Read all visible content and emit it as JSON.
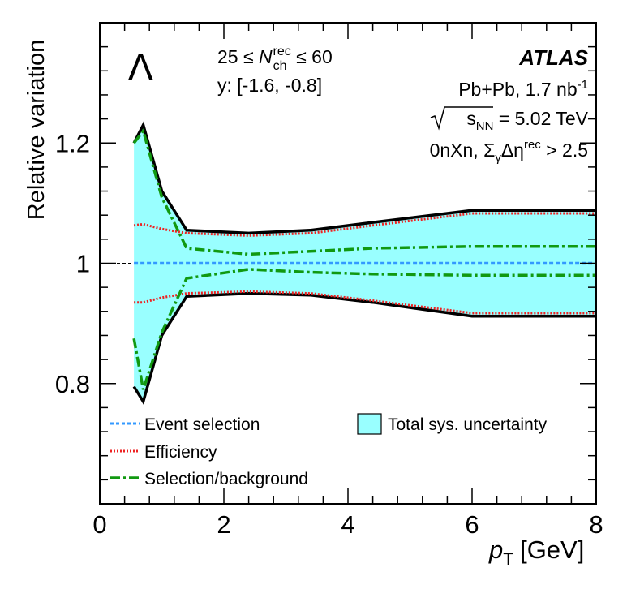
{
  "chart_data": {
    "type": "line",
    "title": "",
    "xlabel": "p",
    "xlabel_subscript": "T",
    "xlabel_unit": "[GeV]",
    "ylabel": "Relative variation",
    "xlim": [
      0,
      8
    ],
    "ylim": [
      0.6,
      1.4
    ],
    "xticks": [
      0,
      2,
      4,
      6,
      8
    ],
    "xtick_labels": [
      "0",
      "2",
      "4",
      "6",
      "8"
    ],
    "yticks": [
      0.8,
      1.0,
      1.2
    ],
    "ytick_labels": [
      "0.8",
      "1",
      "1.2"
    ],
    "grid": false,
    "annotations": {
      "particle": "Λ",
      "mult_prefix": "25 ≤ ",
      "mult_N": "N",
      "mult_sub": "ch",
      "mult_sup": "rec",
      "mult_suffix": " ≤ 60",
      "rapidity": "y: [-1.6, -0.8]",
      "experiment": "ATLAS",
      "system_text": "Pb+Pb, 1.7 nb",
      "system_sup": "-1",
      "energy_s": "s",
      "energy_sub": "NN",
      "energy_value": " = 5.02 TeV",
      "selection_prefix": "0nXn, Σ",
      "selection_gamma": "γ",
      "selection_mid": "Δη",
      "selection_sup": "rec",
      "selection_suffix": " > 2.5"
    },
    "x": [
      0.55,
      0.7,
      1.0,
      1.4,
      2.4,
      3.4,
      4.4,
      6.0,
      8.0
    ],
    "total_band": {
      "name": "Total sys. uncertainty",
      "color": "#99ffff",
      "upper": [
        1.2,
        1.23,
        1.12,
        1.055,
        1.05,
        1.055,
        1.068,
        1.088,
        1.088
      ],
      "lower": [
        0.795,
        0.77,
        0.88,
        0.945,
        0.95,
        0.947,
        0.935,
        0.912,
        0.912
      ]
    },
    "series": [
      {
        "name": "Event selection",
        "color": "#3399ff",
        "style": "dotted",
        "values": [
          1.0,
          1.0,
          1.0,
          1.0,
          1.0,
          1.0,
          1.0,
          1.0,
          1.0
        ]
      },
      {
        "name": "Efficiency",
        "color": "#ee2222",
        "style": "densedot",
        "upper": [
          1.063,
          1.065,
          1.057,
          1.05,
          1.046,
          1.05,
          1.063,
          1.083,
          1.083
        ],
        "lower": [
          0.935,
          0.935,
          0.943,
          0.95,
          0.953,
          0.95,
          0.938,
          0.917,
          0.917
        ]
      },
      {
        "name": "Selection/background",
        "color": "#119911",
        "style": "dashdot",
        "upper": [
          1.2,
          1.22,
          1.11,
          1.025,
          1.015,
          1.02,
          1.025,
          1.028,
          1.028
        ],
        "lower": [
          0.875,
          0.79,
          0.885,
          0.975,
          0.99,
          0.985,
          0.982,
          0.98,
          0.98
        ]
      }
    ],
    "reference_line": 1.0,
    "legend_position": "bottom"
  }
}
